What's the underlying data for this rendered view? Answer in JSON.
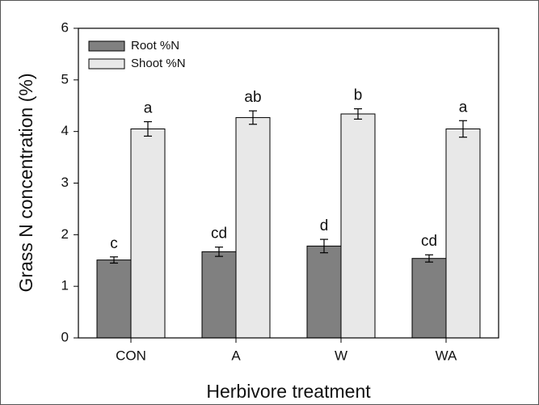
{
  "chart_data": {
    "type": "bar",
    "xlabel": "Herbivore treatment",
    "ylabel": "Grass N concentration (%)",
    "categories": [
      "CON",
      "A",
      "W",
      "WA"
    ],
    "series": [
      {
        "name": "Root %N",
        "color": "#808080",
        "values": [
          1.51,
          1.67,
          1.78,
          1.54
        ],
        "errors": [
          0.06,
          0.09,
          0.13,
          0.07
        ],
        "labels": [
          "c",
          "cd",
          "d",
          "cd"
        ]
      },
      {
        "name": "Shoot %N",
        "color": "#e8e8e8",
        "values": [
          4.05,
          4.27,
          4.34,
          4.05
        ],
        "errors": [
          0.14,
          0.13,
          0.1,
          0.16
        ],
        "labels": [
          "a",
          "ab",
          "b",
          "a"
        ]
      }
    ],
    "ylim": [
      0,
      6
    ],
    "yticks": [
      0,
      1,
      2,
      3,
      4,
      5,
      6
    ],
    "legend": "upper-left",
    "grid": false
  }
}
